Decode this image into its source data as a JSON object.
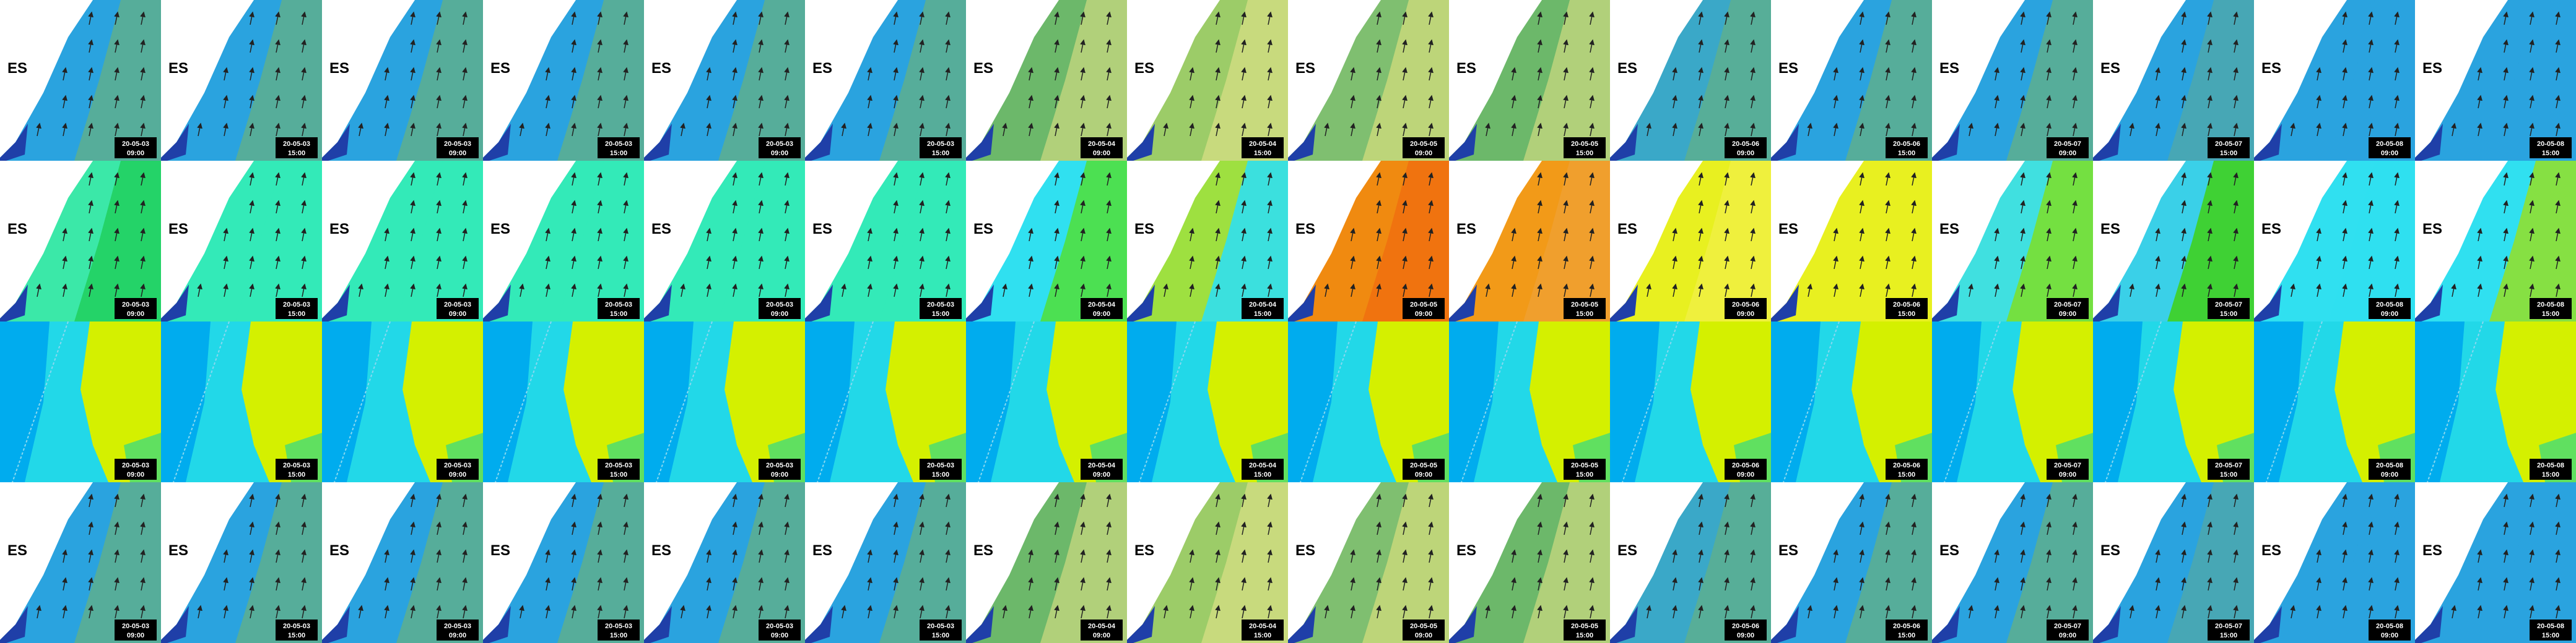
{
  "country_code": "ES",
  "columns": [
    {
      "date": "20-05-03",
      "time": "09:00"
    },
    {
      "date": "20-05-03",
      "time": "15:00"
    },
    {
      "date": "20-05-03",
      "time": "09:00"
    },
    {
      "date": "20-05-03",
      "time": "15:00"
    },
    {
      "date": "20-05-03",
      "time": "09:00"
    },
    {
      "date": "20-05-03",
      "time": "15:00"
    },
    {
      "date": "20-05-04",
      "time": "09:00"
    },
    {
      "date": "20-05-04",
      "time": "15:00"
    },
    {
      "date": "20-05-05",
      "time": "09:00"
    },
    {
      "date": "20-05-05",
      "time": "15:00"
    },
    {
      "date": "20-05-06",
      "time": "09:00"
    },
    {
      "date": "20-05-06",
      "time": "15:00"
    },
    {
      "date": "20-05-07",
      "time": "09:00"
    },
    {
      "date": "20-05-07",
      "time": "15:00"
    },
    {
      "date": "20-05-08",
      "time": "09:00"
    },
    {
      "date": "20-05-08",
      "time": "15:00"
    }
  ]
}
